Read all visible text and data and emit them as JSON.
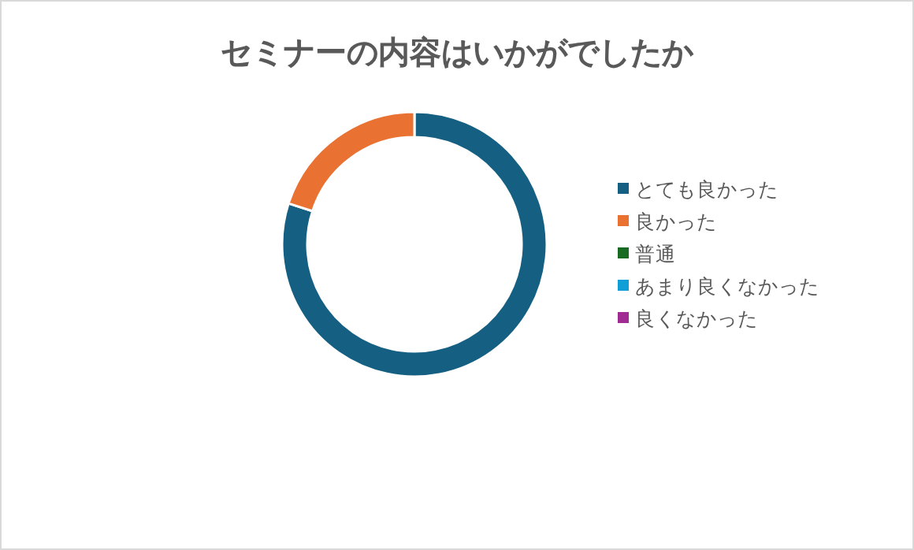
{
  "chart_data": {
    "type": "donut",
    "title": "セミナーの内容はいかがでしたか",
    "categories": [
      "とても良かった",
      "良かった",
      "普通",
      "あまり良くなかった",
      "良くなかった"
    ],
    "values": [
      80,
      20,
      0,
      0,
      0
    ],
    "colors": [
      "#156082",
      "#e97132",
      "#196b24",
      "#0f9ed5",
      "#a02b93"
    ],
    "legend": "right"
  }
}
